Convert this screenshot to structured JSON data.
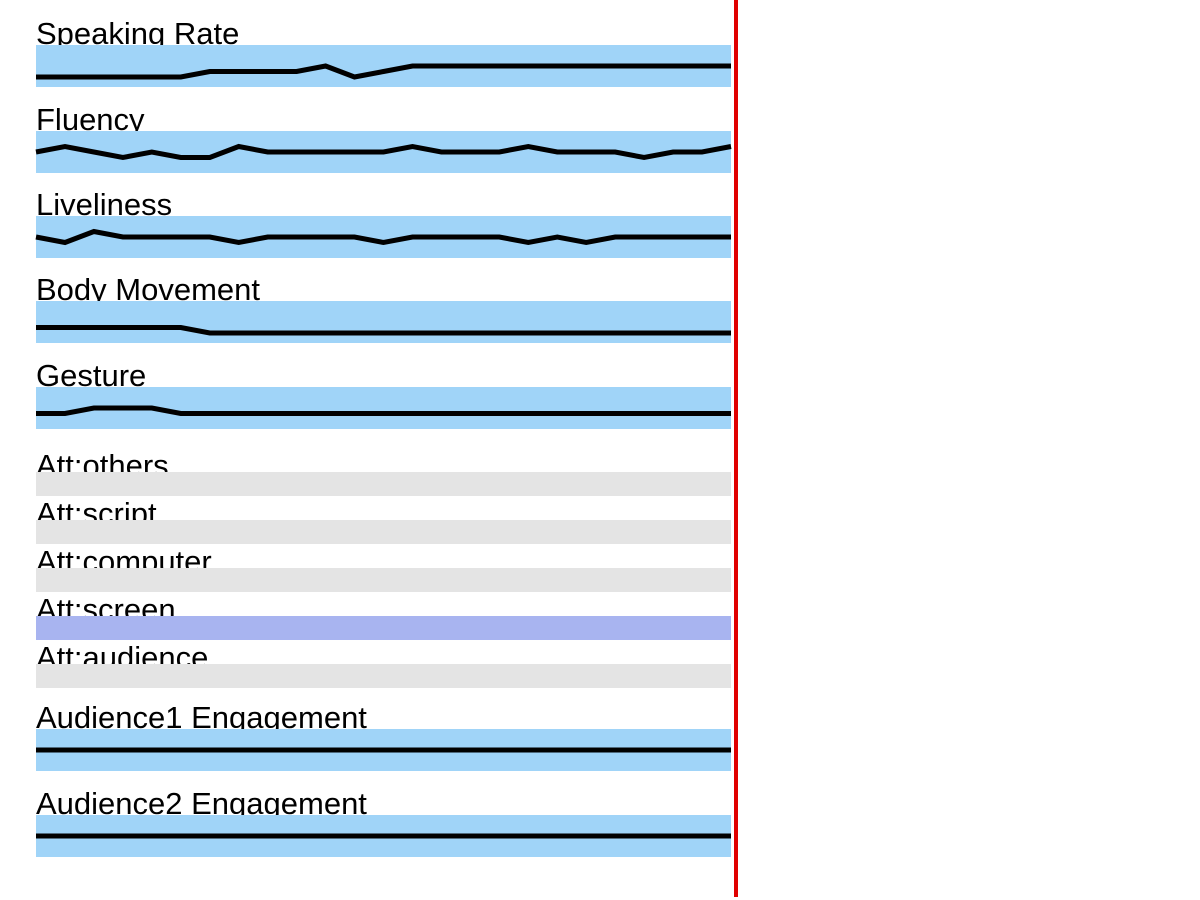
{
  "colors": {
    "signal_band": "#a0d4f8",
    "attention_band": "#e4e4e4",
    "attention_active": "#a8b4f0",
    "trace": "#000000",
    "playhead": "#e00000"
  },
  "range": {
    "min": 0,
    "max": 4
  },
  "signals": [
    {
      "label": "Speaking Rate",
      "values": [
        0,
        0,
        0,
        0,
        0,
        0,
        1,
        1,
        1,
        1,
        2,
        0,
        1,
        2,
        2,
        2,
        2,
        2,
        2,
        2,
        2,
        2,
        2,
        2,
        2
      ]
    },
    {
      "label": "Fluency",
      "values": [
        2,
        3,
        2,
        1,
        2,
        1,
        1,
        3,
        2,
        2,
        2,
        2,
        2,
        3,
        2,
        2,
        2,
        3,
        2,
        2,
        2,
        1,
        2,
        2,
        3
      ]
    },
    {
      "label": "Liveliness",
      "values": [
        2,
        1,
        3,
        2,
        2,
        2,
        2,
        1,
        2,
        2,
        2,
        2,
        1,
        2,
        2,
        2,
        2,
        1,
        2,
        1,
        2,
        2,
        2,
        2,
        2
      ]
    },
    {
      "label": "Body Movement",
      "values": [
        1,
        1,
        1,
        1,
        1,
        1,
        0,
        0,
        0,
        0,
        0,
        0,
        0,
        0,
        0,
        0,
        0,
        0,
        0,
        0,
        0,
        0,
        0,
        0,
        0
      ]
    },
    {
      "label": "Gesture",
      "values": [
        1,
        1,
        2,
        2,
        2,
        1,
        1,
        1,
        1,
        1,
        1,
        1,
        1,
        1,
        1,
        1,
        1,
        1,
        1,
        1,
        1,
        1,
        1,
        1,
        1
      ]
    }
  ],
  "attention": [
    {
      "label": "Att:others",
      "active": false
    },
    {
      "label": "Att:script",
      "active": false
    },
    {
      "label": "Att:computer",
      "active": false
    },
    {
      "label": "Att:screen",
      "active": true
    },
    {
      "label": "Att:audience",
      "active": false
    }
  ],
  "engagement": [
    {
      "label": "Audience1 Engagement",
      "values": [
        2,
        2,
        2,
        2,
        2,
        2,
        2,
        2,
        2,
        2,
        2,
        2,
        2,
        2,
        2,
        2,
        2,
        2,
        2,
        2,
        2,
        2,
        2,
        2,
        2
      ]
    },
    {
      "label": "Audience2 Engagement",
      "values": [
        2,
        2,
        2,
        2,
        2,
        2,
        2,
        2,
        2,
        2,
        2,
        2,
        2,
        2,
        2,
        2,
        2,
        2,
        2,
        2,
        2,
        2,
        2,
        2,
        2
      ]
    }
  ]
}
